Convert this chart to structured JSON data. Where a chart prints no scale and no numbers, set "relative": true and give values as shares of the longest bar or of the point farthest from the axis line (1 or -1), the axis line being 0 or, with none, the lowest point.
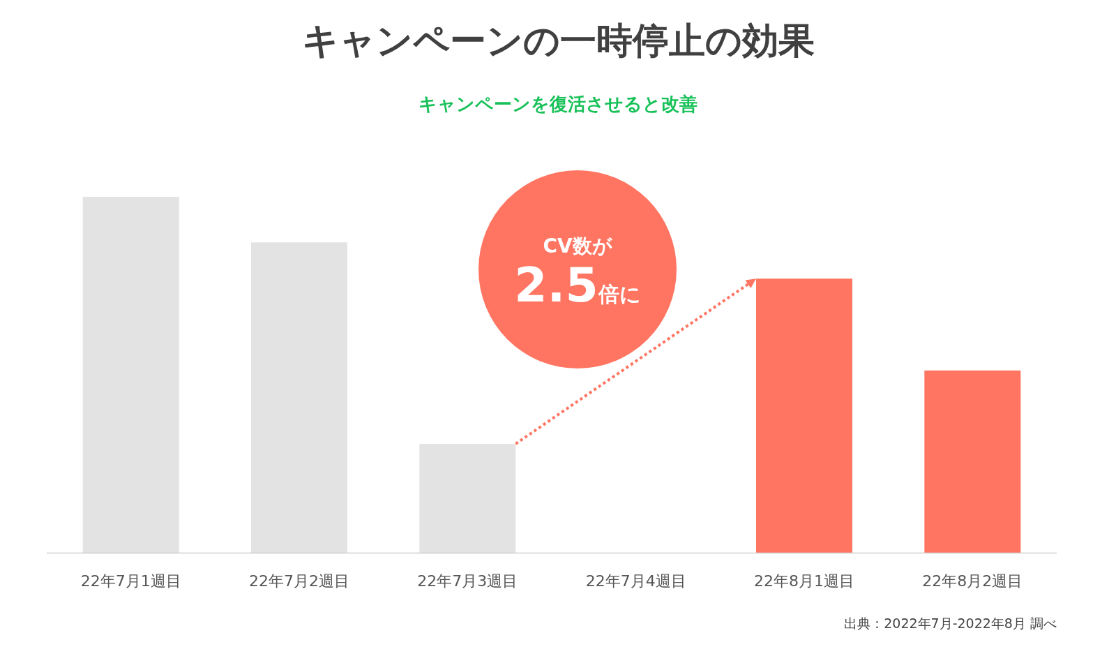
{
  "chart_data": {
    "type": "bar",
    "relative": true,
    "title": "キャンペーンの一時停止の効果",
    "subtitle": "キャンペーンを復活させると改善",
    "categories": [
      "22年7月1週目",
      "22年7月2週目",
      "22年7月3週目",
      "22年7月4週目",
      "22年8月1週目",
      "22年8月2週目"
    ],
    "values": [
      1,
      0.872,
      0.306,
      0,
      0.77,
      0.512
    ],
    "colors": [
      "#e3e3e3",
      "#e3e3e3",
      "#e3e3e3",
      "#e3e3e3",
      "#ff7562",
      "#ff7562"
    ],
    "annotations": [
      "CV数が",
      "2.5倍に",
      "出典：2022年7月-2022年8月 調べ"
    ]
  }
}
